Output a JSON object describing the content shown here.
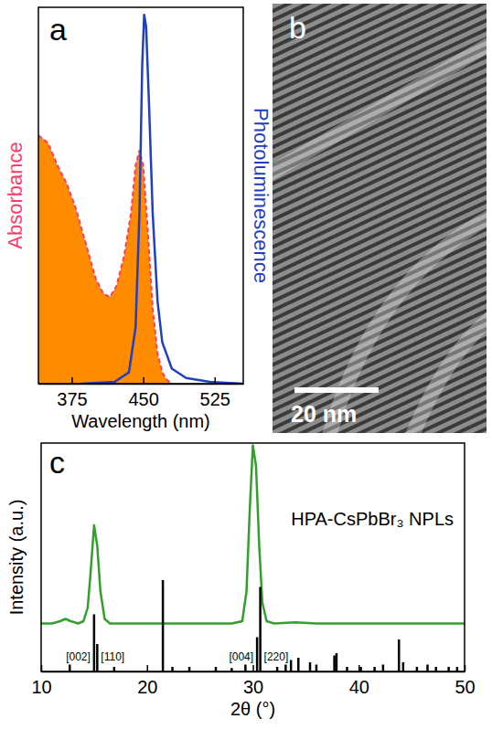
{
  "chart_data": [
    {
      "type": "line",
      "label": "a",
      "xlabel": "Wavelength (nm)",
      "ylabel": "Absorbance",
      "y2label": "Photoluminescence",
      "xlim": [
        340,
        555
      ],
      "xticks": [
        375,
        450,
        525
      ],
      "ylim": [
        0,
        1
      ],
      "y2lim": [
        0,
        1
      ],
      "tick_labels": "x",
      "series": [
        {
          "type": "area",
          "color": "#ff8c00",
          "line_style": "dashed",
          "x": [
            340,
            350,
            360,
            370,
            380,
            390,
            400,
            408,
            415,
            422,
            430,
            437,
            442,
            446,
            450,
            455,
            460,
            465,
            470,
            475,
            480
          ],
          "values": [
            0.66,
            0.64,
            0.58,
            0.53,
            0.46,
            0.37,
            0.28,
            0.24,
            0.23,
            0.26,
            0.34,
            0.45,
            0.58,
            0.62,
            0.58,
            0.4,
            0.2,
            0.08,
            0.03,
            0.01,
            0
          ]
        },
        {
          "type": "line",
          "axis": "y2",
          "color": "#2040c0",
          "x": [
            385,
            420,
            435,
            442,
            446,
            449,
            451,
            453,
            456,
            460,
            465,
            470,
            480,
            495,
            520,
            555
          ],
          "values": [
            0,
            0.005,
            0.03,
            0.15,
            0.45,
            0.85,
            0.98,
            0.95,
            0.75,
            0.45,
            0.22,
            0.11,
            0.04,
            0.015,
            0.005,
            0
          ]
        }
      ]
    },
    {
      "type": "image",
      "label": "b",
      "scale_bar": "20 nm"
    },
    {
      "type": "line",
      "label": "c",
      "xlabel": "2θ (°)",
      "ylabel": "Intensity (a.u.)",
      "xlim": [
        10,
        50
      ],
      "xticks": [
        10,
        20,
        30,
        40,
        50
      ],
      "ylim": [
        0,
        1
      ],
      "tick_labels": "x",
      "legend": "upper right",
      "series": [
        {
          "name": "HPA-CsPbBr₃ NPLs",
          "type": "line",
          "color": "#33a02c",
          "x": [
            10,
            11,
            11.8,
            12.3,
            12.8,
            13.5,
            14,
            14.4,
            14.7,
            15,
            15.3,
            15.6,
            16,
            16.5,
            17,
            18,
            20,
            22,
            24,
            26,
            28,
            29,
            29.4,
            29.7,
            30,
            30.3,
            30.6,
            30.9,
            31.3,
            32,
            34,
            36,
            38,
            40,
            44,
            48,
            50
          ],
          "values": [
            0.21,
            0.21,
            0.22,
            0.23,
            0.22,
            0.21,
            0.22,
            0.28,
            0.45,
            0.64,
            0.55,
            0.35,
            0.23,
            0.21,
            0.21,
            0.21,
            0.21,
            0.21,
            0.21,
            0.21,
            0.21,
            0.22,
            0.35,
            0.7,
            0.99,
            0.9,
            0.55,
            0.3,
            0.22,
            0.21,
            0.215,
            0.21,
            0.21,
            0.21,
            0.21,
            0.21,
            0.21
          ]
        },
        {
          "type": "bar",
          "color": "#000000",
          "x": [
            12.7,
            15.0,
            15.3,
            16.9,
            21.5,
            22.4,
            24.0,
            26.5,
            28.0,
            29.3,
            30.4,
            30.7,
            32.3,
            33.1,
            33.6,
            34.3,
            35.4,
            36.0,
            37.7,
            37.9,
            38.9,
            40.2,
            41.5,
            42.3,
            43.8,
            44.2,
            45.5,
            46.5,
            47.3,
            48.5,
            49.3
          ],
          "values": [
            0.03,
            0.25,
            0.12,
            0.02,
            0.4,
            0.02,
            0.02,
            0.02,
            0.015,
            0.03,
            0.15,
            0.37,
            0.02,
            0.03,
            0.05,
            0.06,
            0.04,
            0.03,
            0.07,
            0.08,
            0.02,
            0.02,
            0.02,
            0.03,
            0.14,
            0.04,
            0.02,
            0.03,
            0.02,
            0.02,
            0.02
          ]
        }
      ],
      "annotations": [
        {
          "text": "[002]",
          "x": 15.0
        },
        {
          "text": "[110]",
          "x": 15.3
        },
        {
          "text": "[004]",
          "x": 30.4
        },
        {
          "text": "[220]",
          "x": 30.7
        }
      ]
    }
  ]
}
